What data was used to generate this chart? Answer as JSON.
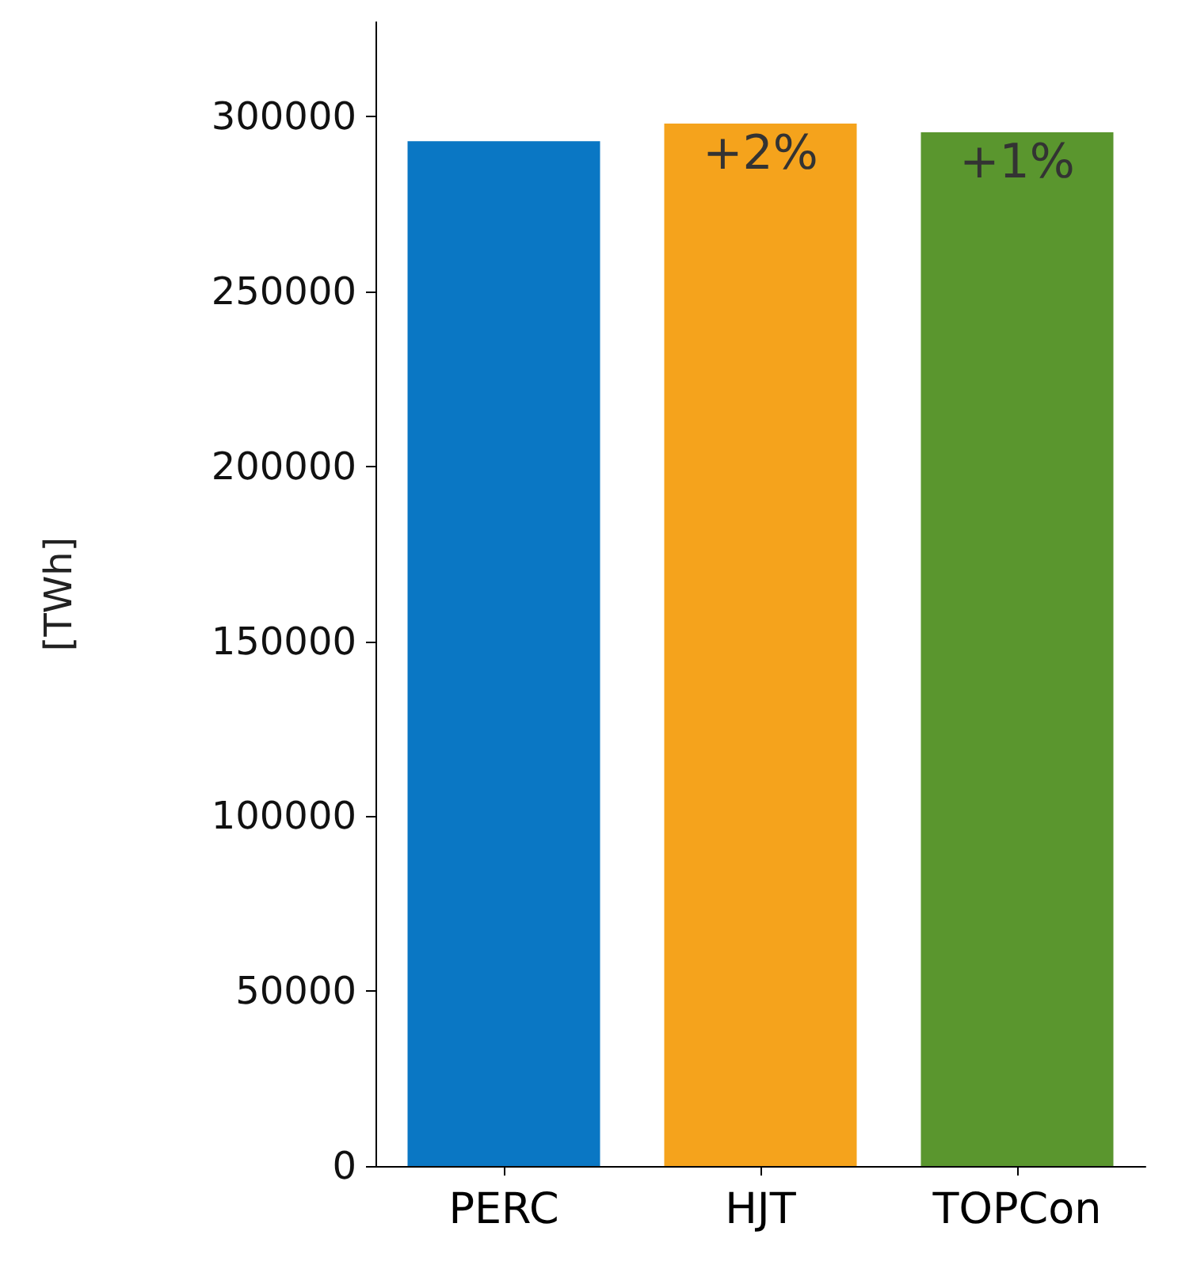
{
  "chart_data": {
    "type": "bar",
    "ylabel": "[TWh]",
    "categories": [
      "PERC",
      "HJT",
      "TOPCon"
    ],
    "values": [
      293000,
      298000,
      295500
    ],
    "colors": [
      "#0a77c4",
      "#f5a31c",
      "#5a962e"
    ],
    "ylim": [
      0,
      327000
    ],
    "yticks": [
      0,
      50000,
      100000,
      150000,
      200000,
      250000,
      300000
    ],
    "grid": false,
    "annotations": [
      {
        "text": "+2%",
        "x": "HJT",
        "y": 298000
      },
      {
        "text": "+1%",
        "x": "TOPCon",
        "y": 295500
      }
    ]
  }
}
